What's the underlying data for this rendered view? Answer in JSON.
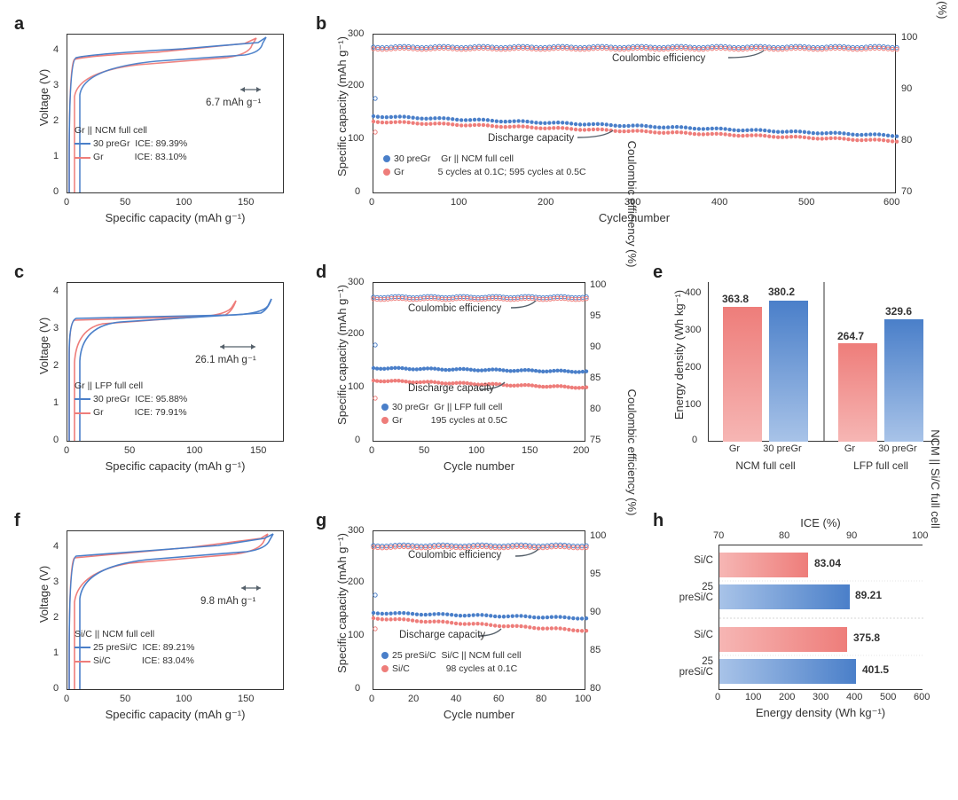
{
  "colors": {
    "blue": "#4a7fc9",
    "red": "#ee7d7a",
    "annot": "#55606a",
    "axis": "#333333",
    "grid": "#c8c8c8"
  },
  "panel_a": {
    "label": "a",
    "type": "line",
    "xlabel": "Specific capacity (mAh g⁻¹)",
    "ylabel": "Voltage (V)",
    "xlim": [
      0,
      180
    ],
    "xticks": [
      0,
      50,
      100,
      150
    ],
    "ylim": [
      0,
      4.5
    ],
    "yticks": [
      0,
      1,
      2,
      3,
      4
    ],
    "annotation": "6.7 mAh g⁻¹",
    "legend_title": "Gr || NCM full cell",
    "series": [
      {
        "name": "30 preGr",
        "color": "#4a7fc9",
        "ice": "89.39%"
      },
      {
        "name": "Gr",
        "color": "#ee7d7a",
        "ice": "83.10%"
      }
    ]
  },
  "panel_b": {
    "label": "b",
    "type": "scatter-dual-axis",
    "xlabel": "Cycle number",
    "ylabel": "Specific capacity (mAh g⁻¹)",
    "y2label": "Coulombic efficiency (%)",
    "xlim": [
      0,
      600
    ],
    "xticks": [
      0,
      100,
      200,
      300,
      400,
      500,
      600
    ],
    "ylim": [
      0,
      300
    ],
    "yticks": [
      0,
      100,
      200,
      300
    ],
    "y2lim": [
      70,
      102
    ],
    "y2ticks": [
      70,
      80,
      90,
      100
    ],
    "annot_ce": "Coulombic efficiency",
    "annot_dc": "Discharge capacity",
    "legend": [
      {
        "name": "30 preGr",
        "color": "#4a7fc9"
      },
      {
        "name": "Gr",
        "color": "#ee7d7a"
      }
    ],
    "cell_label": "Gr || NCM full cell",
    "cycle_text": "5 cycles at 0.1C; 595 cycles at 0.5C"
  },
  "panel_c": {
    "label": "c",
    "type": "line",
    "xlabel": "Specific capacity (mAh g⁻¹)",
    "ylabel": "Voltage (V)",
    "xlim": [
      0,
      170
    ],
    "xticks": [
      0,
      50,
      100,
      150
    ],
    "ylim": [
      0,
      4.2
    ],
    "yticks": [
      0,
      1,
      2,
      3,
      4
    ],
    "annotation": "26.1 mAh g⁻¹",
    "legend_title": "Gr || LFP full cell",
    "series": [
      {
        "name": "30 preGr",
        "color": "#4a7fc9",
        "ice": "95.88%"
      },
      {
        "name": "Gr",
        "color": "#ee7d7a",
        "ice": "79.91%"
      }
    ]
  },
  "panel_d": {
    "label": "d",
    "type": "scatter-dual-axis",
    "xlabel": "Cycle number",
    "ylabel": "Specific capacity (mAh g⁻¹)",
    "y2label": "Coulombic efficiency (%)",
    "xlim": [
      0,
      200
    ],
    "xticks": [
      0,
      50,
      100,
      150,
      200
    ],
    "ylim": [
      0,
      300
    ],
    "yticks": [
      0,
      100,
      200,
      300
    ],
    "y2lim": [
      75,
      102
    ],
    "y2ticks": [
      75,
      80,
      85,
      90,
      95,
      100
    ],
    "annot_ce": "Coulombic efficiency",
    "annot_dc": "Discharge capacity",
    "legend": [
      {
        "name": "30 preGr",
        "color": "#4a7fc9"
      },
      {
        "name": "Gr",
        "color": "#ee7d7a"
      }
    ],
    "cell_label": "Gr || LFP full cell",
    "cycle_text": "195 cycles at 0.5C"
  },
  "panel_e": {
    "label": "e",
    "type": "bar",
    "ylabel": "Energy density (Wh kg⁻¹)",
    "ylim": [
      0,
      430
    ],
    "yticks": [
      0,
      100,
      200,
      300,
      400
    ],
    "groups": [
      {
        "title": "NCM full cell",
        "bars": [
          {
            "name": "Gr",
            "value": 363.8,
            "color": "#ee7d7a"
          },
          {
            "name": "30 preGr",
            "value": 380.2,
            "color": "#4a7fc9"
          }
        ]
      },
      {
        "title": "LFP full cell",
        "bars": [
          {
            "name": "Gr",
            "value": 264.7,
            "color": "#ee7d7a"
          },
          {
            "name": "30 preGr",
            "value": 329.6,
            "color": "#4a7fc9"
          }
        ]
      }
    ]
  },
  "panel_f": {
    "label": "f",
    "type": "line",
    "xlabel": "Specific capacity (mAh g⁻¹)",
    "ylabel": "Voltage (V)",
    "xlim": [
      0,
      180
    ],
    "xticks": [
      0,
      50,
      100,
      150
    ],
    "ylim": [
      0,
      4.5
    ],
    "yticks": [
      0,
      1,
      2,
      3,
      4
    ],
    "annotation": "9.8 mAh g⁻¹",
    "legend_title": "Si/C || NCM full cell",
    "series": [
      {
        "name": "25 preSi/C",
        "color": "#4a7fc9",
        "ice": "89.21%"
      },
      {
        "name": "Si/C",
        "color": "#ee7d7a",
        "ice": "83.04%"
      }
    ]
  },
  "panel_g": {
    "label": "g",
    "type": "scatter-dual-axis",
    "xlabel": "Cycle number",
    "ylabel": "Specific capacity (mAh g⁻¹)",
    "y2label": "Coulombic efficiency (%)",
    "xlim": [
      0,
      100
    ],
    "xticks": [
      0,
      20,
      40,
      60,
      80,
      100
    ],
    "ylim": [
      0,
      300
    ],
    "yticks": [
      0,
      100,
      200,
      300
    ],
    "y2lim": [
      80,
      102
    ],
    "y2ticks": [
      80,
      85,
      90,
      95,
      100
    ],
    "annot_ce": "Coulombic efficiency",
    "annot_dc": "Discharge capacity",
    "legend": [
      {
        "name": "25 preSi/C",
        "color": "#4a7fc9"
      },
      {
        "name": "Si/C",
        "color": "#ee7d7a"
      }
    ],
    "cell_label": "Si/C || NCM full cell",
    "cycle_text": "98 cycles at 0.1C"
  },
  "panel_h": {
    "label": "h",
    "type": "hbar-dual-axis",
    "top_axis": "ICE (%)",
    "bottom_axis": "Energy density (Wh kg⁻¹)",
    "right_label": "NCM || Si/C full cell",
    "top_xlim": [
      70,
      100
    ],
    "top_xticks": [
      70,
      80,
      90,
      100
    ],
    "bottom_xlim": [
      0,
      600
    ],
    "bottom_xticks": [
      0,
      100,
      200,
      300,
      400,
      500,
      600
    ],
    "bars_top": [
      {
        "name": "Si/C",
        "value": 83.04,
        "color": "#ee7d7a"
      },
      {
        "name": "25\npreSi/C",
        "value": 89.21,
        "color": "#4a7fc9"
      }
    ],
    "bars_bottom": [
      {
        "name": "Si/C",
        "value": 375.8,
        "color": "#ee7d7a"
      },
      {
        "name": "25\npreSi/C",
        "value": 401.5,
        "color": "#4a7fc9"
      }
    ]
  }
}
